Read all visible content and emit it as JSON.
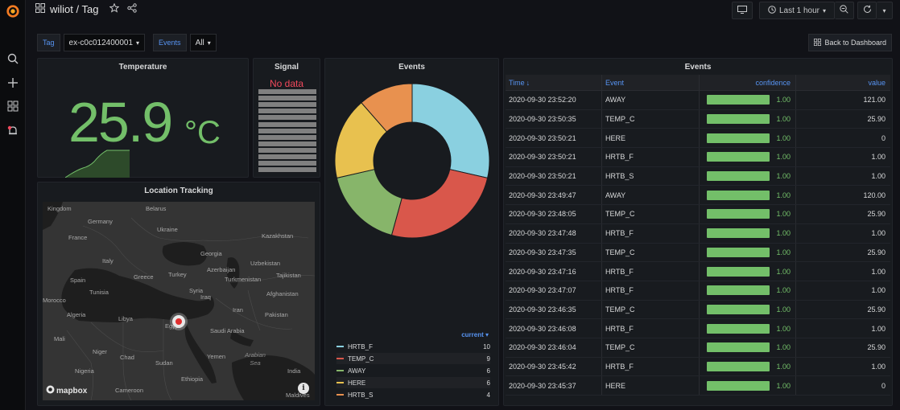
{
  "header": {
    "title": "wiliot / Tag",
    "time_range": "Last 1 hour"
  },
  "variables": {
    "tag_label": "Tag",
    "tag_value": "ex-c0c012400001",
    "events_label": "Events",
    "events_value": "All",
    "back_button": "Back to Dashboard"
  },
  "temperature": {
    "title": "Temperature",
    "value": "25.9",
    "unit": "°C",
    "color": "#73bf69"
  },
  "signal": {
    "title": "Signal",
    "no_data": "No data"
  },
  "location": {
    "title": "Location Tracking",
    "attribution": "mapbox",
    "labels": [
      {
        "text": "Kingdom"
      },
      {
        "text": "Belarus"
      },
      {
        "text": "Germany"
      },
      {
        "text": "Ukraine"
      },
      {
        "text": "France"
      },
      {
        "text": "Kazakhstan"
      },
      {
        "text": "Italy"
      },
      {
        "text": "Georgia"
      },
      {
        "text": "Uzbekistan"
      },
      {
        "text": "Azerbaijan"
      },
      {
        "text": "Spain"
      },
      {
        "text": "Greece"
      },
      {
        "text": "Turkey"
      },
      {
        "text": "Turkmenistan"
      },
      {
        "text": "Tajikistan"
      },
      {
        "text": "Syria"
      },
      {
        "text": "Tunisia"
      },
      {
        "text": "Iraq"
      },
      {
        "text": "Afghanistan"
      },
      {
        "text": "Morocco"
      },
      {
        "text": "Iran"
      },
      {
        "text": "Algeria"
      },
      {
        "text": "Libya"
      },
      {
        "text": "Pakistan"
      },
      {
        "text": "Egypt"
      },
      {
        "text": "Saudi Arabia"
      },
      {
        "text": "Mali"
      },
      {
        "text": "Niger"
      },
      {
        "text": "Chad"
      },
      {
        "text": "Sudan"
      },
      {
        "text": "Yemen"
      },
      {
        "text": "Arabian Sea"
      },
      {
        "text": "India"
      },
      {
        "text": "Nigeria"
      },
      {
        "text": "Ethiopia"
      },
      {
        "text": "Cameroon"
      },
      {
        "text": "Maldives"
      }
    ]
  },
  "chart_data": {
    "type": "pie",
    "title": "Events",
    "legend_header": "current",
    "legend_placement": "bottom",
    "series": [
      {
        "name": "HRTB_F",
        "value": 10,
        "color": "#8ad0e0"
      },
      {
        "name": "TEMP_C",
        "value": 9,
        "color": "#d9574b"
      },
      {
        "name": "AWAY",
        "value": 6,
        "color": "#87b56a"
      },
      {
        "name": "HERE",
        "value": 6,
        "color": "#e8c14f"
      },
      {
        "name": "HRTB_S",
        "value": 4,
        "color": "#e8914f"
      }
    ]
  },
  "events_table": {
    "title": "Events",
    "columns": [
      "Time",
      "Event",
      "confidence",
      "value"
    ],
    "rows": [
      {
        "time": "2020-09-30 23:52:20",
        "event": "AWAY",
        "confidence": "1.00",
        "value": "121.00"
      },
      {
        "time": "2020-09-30 23:50:35",
        "event": "TEMP_C",
        "confidence": "1.00",
        "value": "25.90"
      },
      {
        "time": "2020-09-30 23:50:21",
        "event": "HERE",
        "confidence": "1.00",
        "value": "0"
      },
      {
        "time": "2020-09-30 23:50:21",
        "event": "HRTB_F",
        "confidence": "1.00",
        "value": "1.00"
      },
      {
        "time": "2020-09-30 23:50:21",
        "event": "HRTB_S",
        "confidence": "1.00",
        "value": "1.00"
      },
      {
        "time": "2020-09-30 23:49:47",
        "event": "AWAY",
        "confidence": "1.00",
        "value": "120.00"
      },
      {
        "time": "2020-09-30 23:48:05",
        "event": "TEMP_C",
        "confidence": "1.00",
        "value": "25.90"
      },
      {
        "time": "2020-09-30 23:47:48",
        "event": "HRTB_F",
        "confidence": "1.00",
        "value": "1.00"
      },
      {
        "time": "2020-09-30 23:47:35",
        "event": "TEMP_C",
        "confidence": "1.00",
        "value": "25.90"
      },
      {
        "time": "2020-09-30 23:47:16",
        "event": "HRTB_F",
        "confidence": "1.00",
        "value": "1.00"
      },
      {
        "time": "2020-09-30 23:47:07",
        "event": "HRTB_F",
        "confidence": "1.00",
        "value": "1.00"
      },
      {
        "time": "2020-09-30 23:46:35",
        "event": "TEMP_C",
        "confidence": "1.00",
        "value": "25.90"
      },
      {
        "time": "2020-09-30 23:46:08",
        "event": "HRTB_F",
        "confidence": "1.00",
        "value": "1.00"
      },
      {
        "time": "2020-09-30 23:46:04",
        "event": "TEMP_C",
        "confidence": "1.00",
        "value": "25.90"
      },
      {
        "time": "2020-09-30 23:45:42",
        "event": "HRTB_F",
        "confidence": "1.00",
        "value": "1.00"
      },
      {
        "time": "2020-09-30 23:45:37",
        "event": "HERE",
        "confidence": "1.00",
        "value": "0"
      }
    ]
  }
}
